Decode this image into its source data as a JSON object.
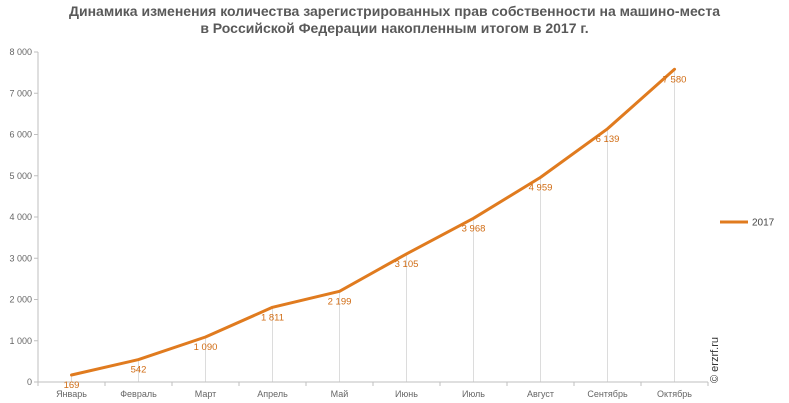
{
  "chart_data": {
    "type": "line",
    "title_lines": [
      "Динамика изменения количества зарегистрированных прав собственности на машино-места",
      "в Российской Федерации накопленным итогом в 2017 г."
    ],
    "categories": [
      "Январь",
      "Февраль",
      "Март",
      "Апрель",
      "Май",
      "Июнь",
      "Июль",
      "Август",
      "Сентябрь",
      "Октябрь"
    ],
    "series": [
      {
        "name": "2017",
        "values": [
          169,
          542,
          1090,
          1811,
          2199,
          3105,
          3968,
          4959,
          6139,
          7580
        ],
        "labels": [
          "169",
          "542",
          "1 090",
          "1 811",
          "2 199",
          "3 105",
          "3 968",
          "4 959",
          "6 139",
          "7 580"
        ],
        "color": "#e07b1f"
      }
    ],
    "ylim": [
      0,
      8000
    ],
    "yticks": [
      0,
      1000,
      2000,
      3000,
      4000,
      5000,
      6000,
      7000,
      8000
    ],
    "ytick_labels": [
      "0",
      "1 000",
      "2 000",
      "3 000",
      "4 000",
      "5 000",
      "6 000",
      "7 000",
      "8 000"
    ],
    "legend_position": "right",
    "grid": false,
    "drop_lines": true
  },
  "watermark": "© erzrf.ru"
}
